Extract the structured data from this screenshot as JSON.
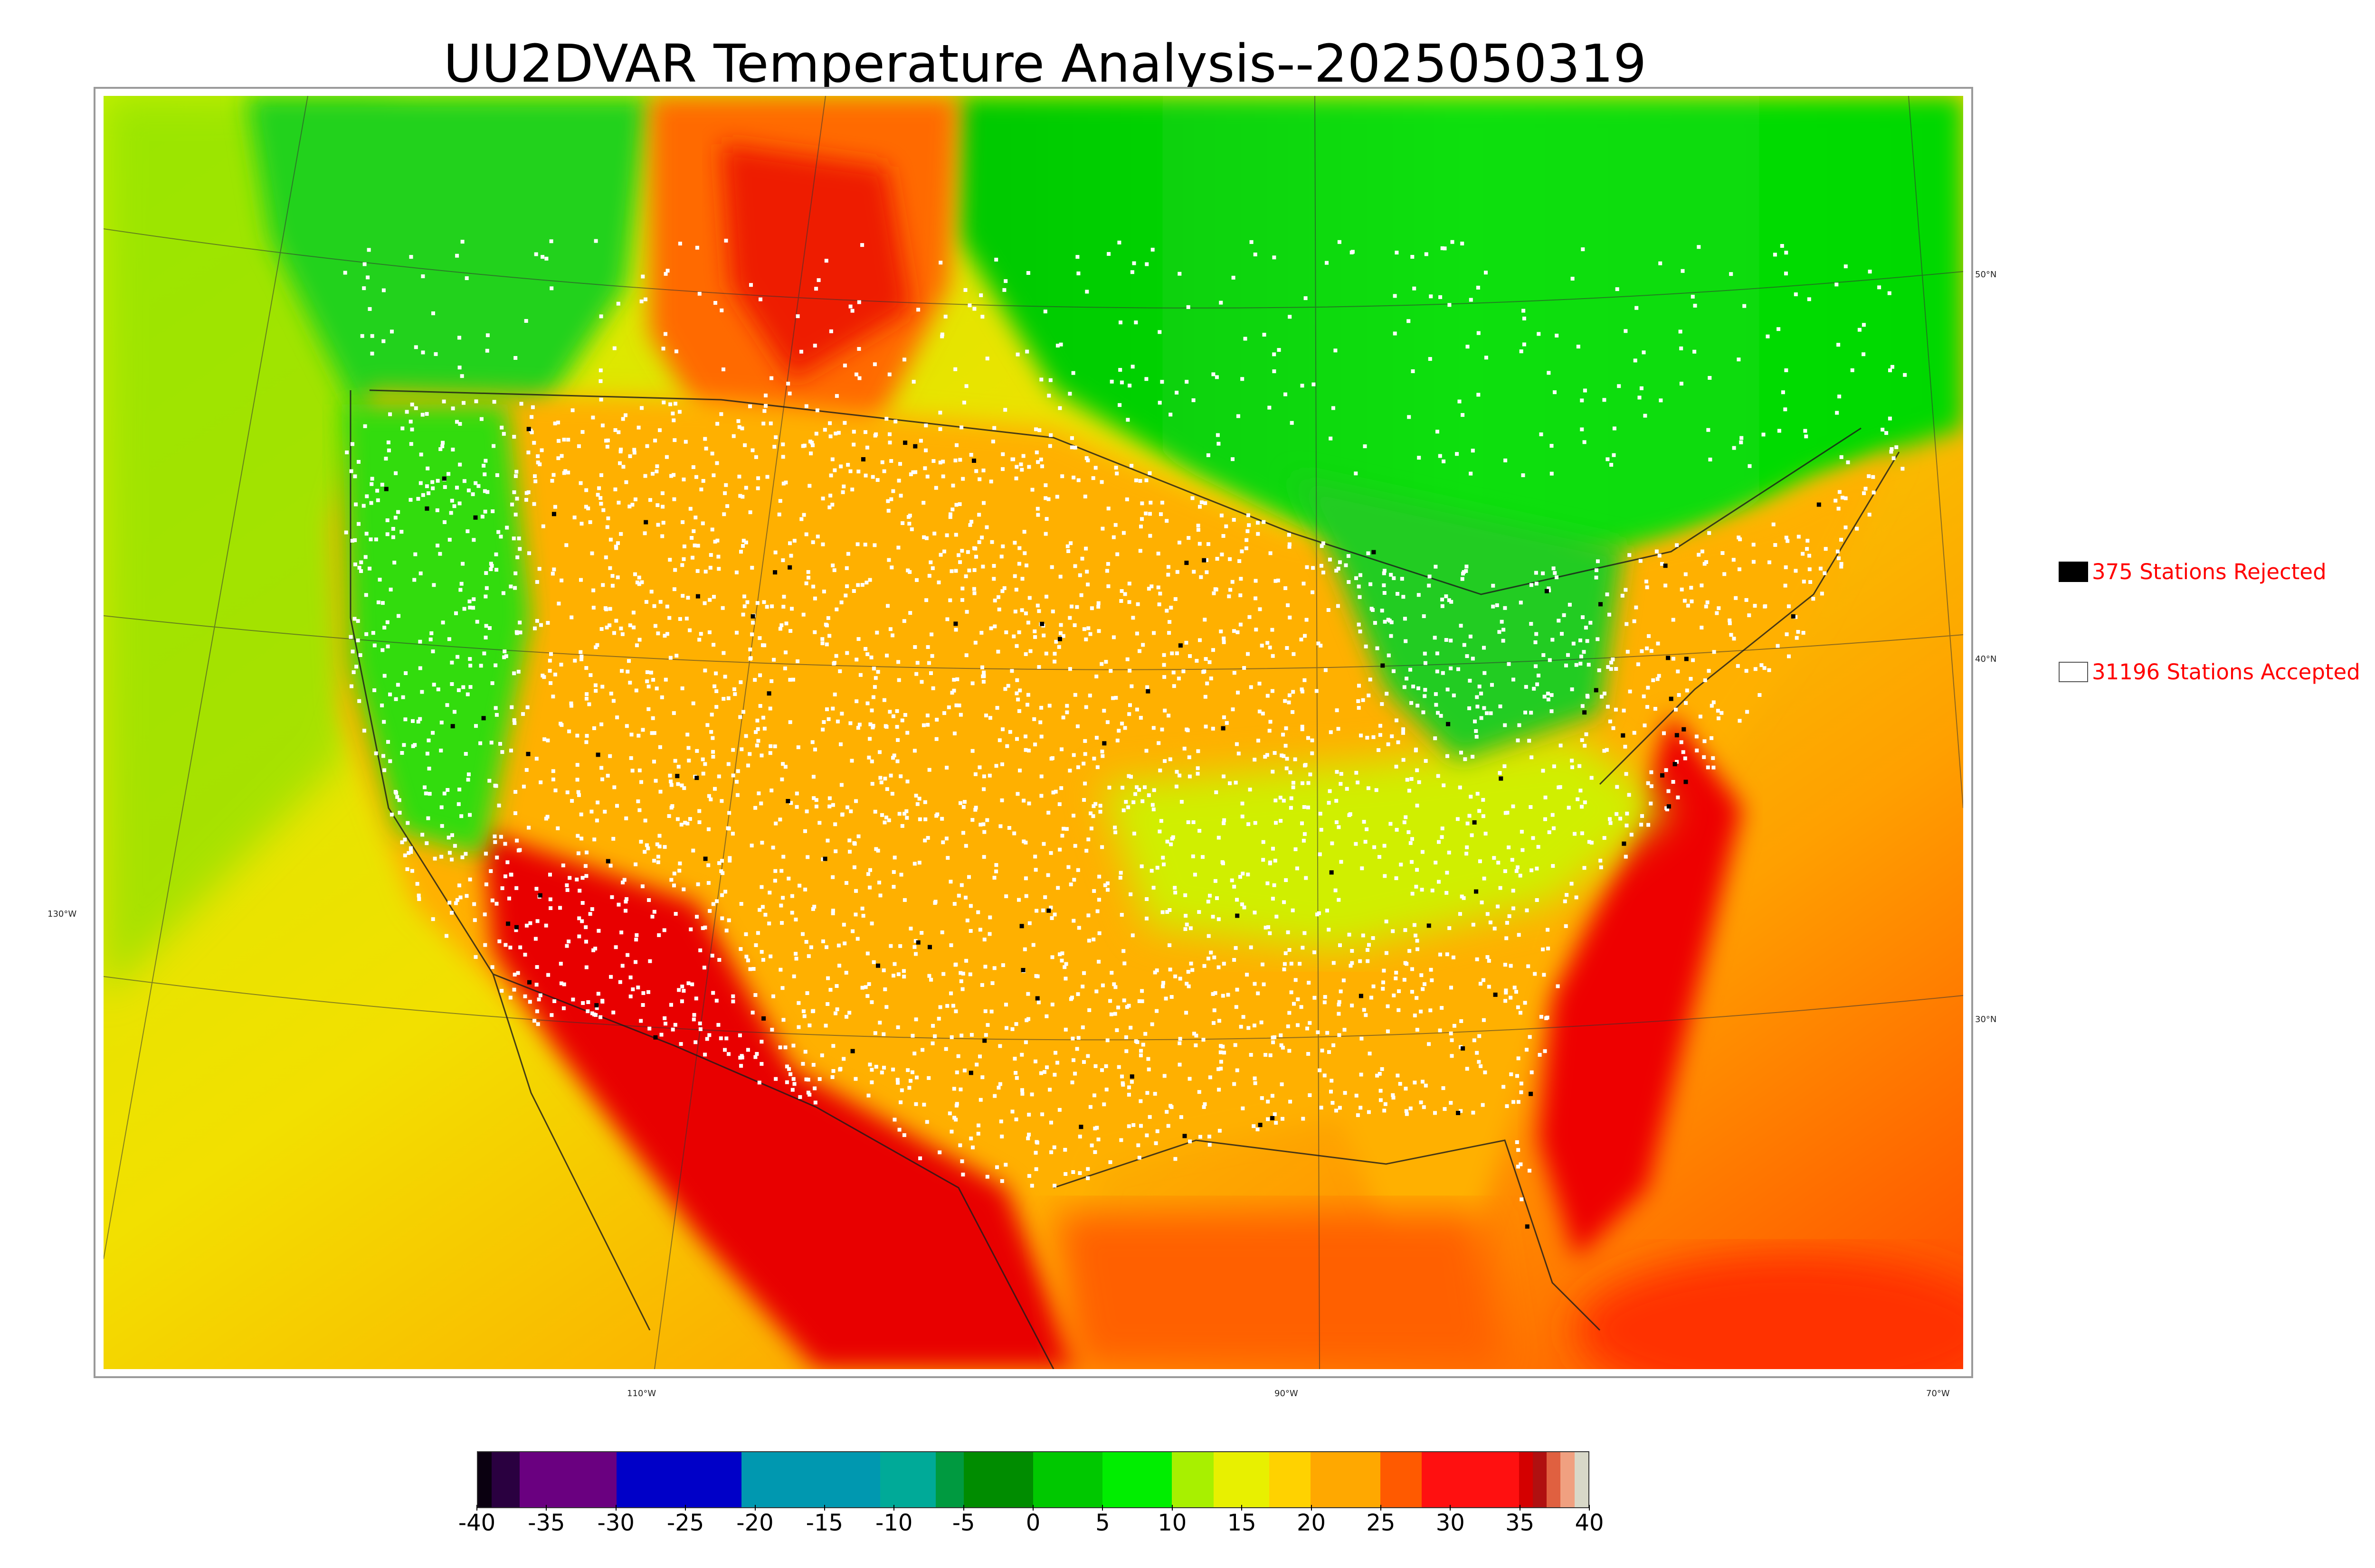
{
  "title": "UU2DVAR Temperature Analysis--2025050319",
  "map": {
    "latitude_labels": [
      "50°N",
      "40°N",
      "30°N"
    ],
    "longitude_labels": [
      "130°W",
      "110°W",
      "90°W",
      "70°W"
    ],
    "colors": {
      "ocean_gradient": [
        "#c6f000",
        "#f6d000",
        "#ff9a00",
        "#ff4a00"
      ],
      "canada": "#1de61a",
      "hot": "#e60000",
      "warm": "#ffb300",
      "mild": "#ffe100",
      "cool": "#00d400",
      "station_accepted": "#ffffff",
      "station_rejected": "#000000"
    }
  },
  "legend": {
    "rejected_label": "375 Stations Rejected",
    "accepted_label": "31196 Stations Accepted",
    "rejected_color": "#000000",
    "accepted_color": "#ffffff"
  },
  "colorbar": {
    "min": -40,
    "max": 40,
    "tick_labels": [
      "-40",
      "-35",
      "-30",
      "-25",
      "-20",
      "-15",
      "-10",
      "-5",
      "0",
      "5",
      "10",
      "15",
      "20",
      "25",
      "30",
      "35",
      "40"
    ],
    "stops": [
      {
        "from": -40,
        "to": -39,
        "color": "#0a0010"
      },
      {
        "from": -39,
        "to": -37,
        "color": "#2a0040"
      },
      {
        "from": -37,
        "to": -30,
        "color": "#6a0080"
      },
      {
        "from": -30,
        "to": -21,
        "color": "#0000c8"
      },
      {
        "from": -21,
        "to": -11,
        "color": "#0098b0"
      },
      {
        "from": -11,
        "to": -7,
        "color": "#00aa98"
      },
      {
        "from": -7,
        "to": -5,
        "color": "#009a40"
      },
      {
        "from": -5,
        "to": 0,
        "color": "#008c00"
      },
      {
        "from": 0,
        "to": 5,
        "color": "#00c800"
      },
      {
        "from": 5,
        "to": 10,
        "color": "#00ee00"
      },
      {
        "from": 10,
        "to": 13,
        "color": "#a8f000"
      },
      {
        "from": 13,
        "to": 17,
        "color": "#e8f000"
      },
      {
        "from": 17,
        "to": 20,
        "color": "#ffd200"
      },
      {
        "from": 20,
        "to": 25,
        "color": "#ffa800"
      },
      {
        "from": 25,
        "to": 28,
        "color": "#ff5a00"
      },
      {
        "from": 28,
        "to": 35,
        "color": "#ff1010"
      },
      {
        "from": 35,
        "to": 36,
        "color": "#d40000"
      },
      {
        "from": 36,
        "to": 37,
        "color": "#b01010"
      },
      {
        "from": 37,
        "to": 38,
        "color": "#e06040"
      },
      {
        "from": 38,
        "to": 39,
        "color": "#f0a080"
      },
      {
        "from": 39,
        "to": 40,
        "color": "#d8d8c8"
      }
    ]
  }
}
